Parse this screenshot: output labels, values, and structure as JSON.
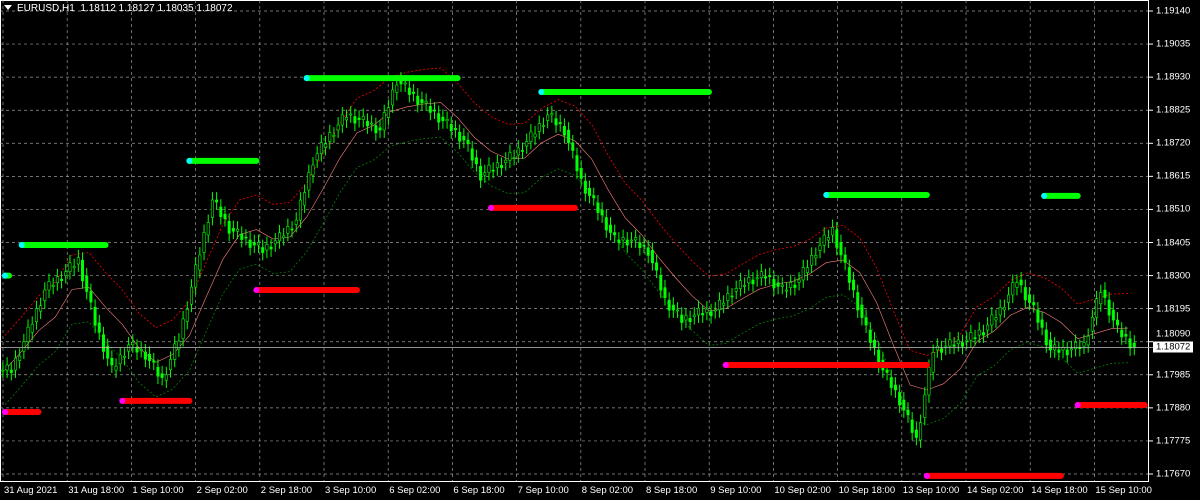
{
  "header": {
    "symbol": "EURUSD,H1",
    "ohlc": "1.18112 1.18127 1.18035 1.18072"
  },
  "colors": {
    "background": "#000000",
    "grid": "#c0c0c0",
    "candle": "#00ff00",
    "upper_band": "#ff0000",
    "lower_band": "#008000",
    "middle": "#ff8080",
    "level_up": "#00ff00",
    "level_down": "#ff0000"
  },
  "chart_data": {
    "type": "candlestick",
    "ylim": [
      1.1767,
      1.1914
    ],
    "y_ticks": [
      "1.19140",
      "1.19035",
      "1.18930",
      "1.18825",
      "1.18720",
      "1.18615",
      "1.18510",
      "1.18405",
      "1.18300",
      "1.18195",
      "1.18090",
      "1.17985",
      "1.17880",
      "1.17775",
      "1.17670"
    ],
    "x_ticks": [
      "31 Aug 2021",
      "31 Aug 18:00",
      "1 Sep 10:00",
      "2 Sep 02:00",
      "2 Sep 18:00",
      "3 Sep 10:00",
      "6 Sep 02:00",
      "6 Sep 18:00",
      "7 Sep 10:00",
      "8 Sep 02:00",
      "8 Sep 18:00",
      "9 Sep 10:00",
      "10 Sep 02:00",
      "10 Sep 18:00",
      "13 Sep 10:00",
      "14 Sep 02:00",
      "14 Sep 18:00",
      "15 Sep 10:00"
    ],
    "current_price": "1.18072",
    "grid": true,
    "closes": [
      1.18,
      1.1812,
      1.18254,
      1.183,
      1.18349,
      1.1815,
      1.18,
      1.1808,
      1.1805,
      1.17968,
      1.181,
      1.18318,
      1.1854,
      1.1845,
      1.18413,
      1.18381,
      1.1842,
      1.18476,
      1.18667,
      1.18746,
      1.1881,
      1.1879,
      1.18762,
      1.18921,
      1.1887,
      1.18826,
      1.1878,
      1.1873,
      1.18619,
      1.1865,
      1.18683,
      1.1874,
      1.1881,
      1.18762,
      1.186,
      1.18508,
      1.18413,
      1.18413,
      1.1838,
      1.18222,
      1.18159,
      1.1818,
      1.18191,
      1.1825,
      1.18286,
      1.183,
      1.18254,
      1.18286,
      1.1838,
      1.18445,
      1.18286,
      1.18127,
      1.18,
      1.17905,
      1.17778,
      1.18064,
      1.1808,
      1.18095,
      1.18127,
      1.18191,
      1.18286,
      1.18191,
      1.18064,
      1.18064,
      1.1808,
      1.18254,
      1.18127,
      1.18072
    ],
    "levels": [
      {
        "price": 1.183,
        "start": 0,
        "end": 0,
        "dir": "up"
      },
      {
        "price": 1.18397,
        "start": 1,
        "end": 6,
        "dir": "up"
      },
      {
        "price": 1.18664,
        "start": 11,
        "end": 15,
        "dir": "up"
      },
      {
        "price": 1.18927,
        "start": 18,
        "end": 27,
        "dir": "up"
      },
      {
        "price": 1.18883,
        "start": 32,
        "end": 42,
        "dir": "up"
      },
      {
        "price": 1.18556,
        "start": 49,
        "end": 55,
        "dir": "up"
      },
      {
        "price": 1.18553,
        "start": 62,
        "end": 64,
        "dir": "up"
      },
      {
        "price": 1.17867,
        "start": 0,
        "end": 2,
        "dir": "down"
      },
      {
        "price": 1.17902,
        "start": 7,
        "end": 11,
        "dir": "down"
      },
      {
        "price": 1.18254,
        "start": 15,
        "end": 21,
        "dir": "down"
      },
      {
        "price": 1.18515,
        "start": 29,
        "end": 34,
        "dir": "down"
      },
      {
        "price": 1.18016,
        "start": 43,
        "end": 55,
        "dir": "down"
      },
      {
        "price": 1.17664,
        "start": 55,
        "end": 63,
        "dir": "down"
      },
      {
        "price": 1.17889,
        "start": 64,
        "end": 68,
        "dir": "down"
      }
    ]
  }
}
